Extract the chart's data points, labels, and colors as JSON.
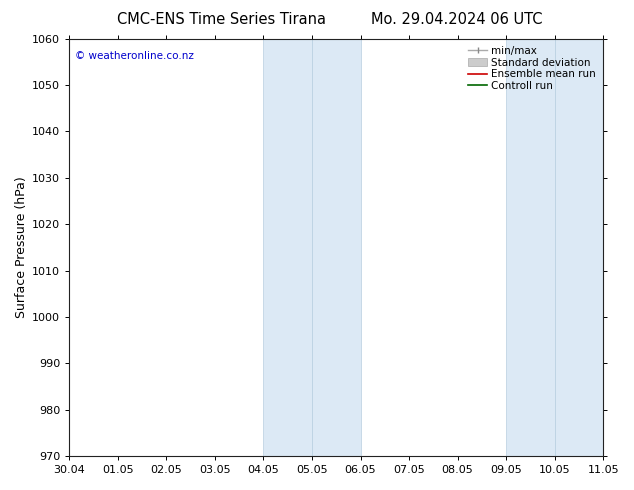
{
  "title_left": "CMC-ENS Time Series Tirana",
  "title_right": "Mo. 29.04.2024 06 UTC",
  "ylabel": "Surface Pressure (hPa)",
  "ylim": [
    970,
    1060
  ],
  "yticks": [
    970,
    980,
    990,
    1000,
    1010,
    1020,
    1030,
    1040,
    1050,
    1060
  ],
  "xlabels": [
    "30.04",
    "01.05",
    "02.05",
    "03.05",
    "04.05",
    "05.05",
    "06.05",
    "07.05",
    "08.05",
    "09.05",
    "10.05",
    "11.05"
  ],
  "shaded_bands": [
    {
      "xstart": 4,
      "xend": 5
    },
    {
      "xstart": 5,
      "xend": 6
    },
    {
      "xstart": 9,
      "xend": 10
    },
    {
      "xstart": 10,
      "xend": 11
    }
  ],
  "shade_color": "#dce9f5",
  "shade_edge_color": "#b8cfe0",
  "watermark": "© weatheronline.co.nz",
  "bg_color": "#ffffff",
  "title_fontsize": 10.5,
  "ylabel_fontsize": 9,
  "tick_fontsize": 8,
  "watermark_color": "#0000cc",
  "legend_fontsize": 7.5
}
